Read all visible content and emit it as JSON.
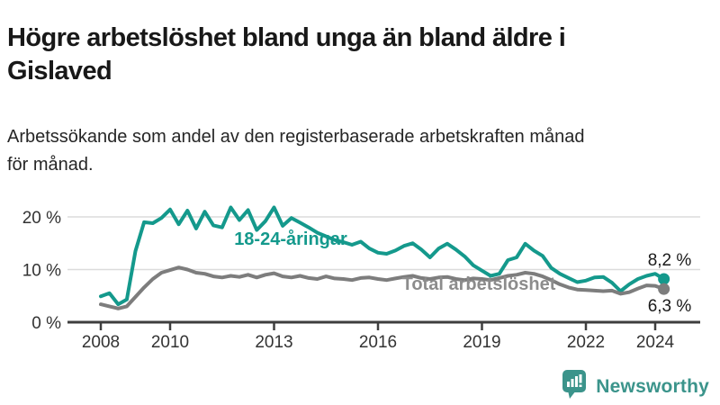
{
  "chart_data": {
    "type": "line",
    "title": "Högre arbetslöshet bland unga än bland äldre i Gislaved",
    "title_lines": [
      "Högre arbetslöshet bland unga än bland äldre i",
      "Gislaved"
    ],
    "subtitle": "Arbetssökande som andel av den registerbaserade arbetskraften månad för månad.",
    "subtitle_lines": [
      "Arbetssökande som andel av den registerbaserade arbetskraften månad",
      "för månad."
    ],
    "x_start": 2008,
    "x_step": 0.25,
    "x_ticks": [
      2008,
      2010,
      2013,
      2016,
      2019,
      2022,
      2024
    ],
    "y_ticks": [
      {
        "value": 0,
        "label": "0 %"
      },
      {
        "value": 10,
        "label": "10 %"
      },
      {
        "value": 20,
        "label": "20 %"
      }
    ],
    "ylim": [
      0,
      23
    ],
    "grid": "horizontal",
    "legend_position": "inline-annotations",
    "axis_color": "#3e3e3e",
    "grid_color": "#dcdcdc",
    "series": [
      {
        "name": "18-24-åringar",
        "color": "#14998c",
        "end_label": "8,2 %",
        "end_value": 8.2,
        "values": [
          4.9,
          5.5,
          3.4,
          4.3,
          13.5,
          19.0,
          18.8,
          19.8,
          21.4,
          18.6,
          21.2,
          17.8,
          21.0,
          18.4,
          18.0,
          21.8,
          19.4,
          21.3,
          17.5,
          19.2,
          21.8,
          18.3,
          19.8,
          18.9,
          18.0,
          17.0,
          16.3,
          15.6,
          15.2,
          14.7,
          15.3,
          14.0,
          13.2,
          13.0,
          13.6,
          14.5,
          15.0,
          13.8,
          12.3,
          14.0,
          14.9,
          13.8,
          12.5,
          10.8,
          9.8,
          8.8,
          9.2,
          11.8,
          12.3,
          14.9,
          13.6,
          12.6,
          10.3,
          9.2,
          8.4,
          7.6,
          7.9,
          8.5,
          8.6,
          7.5,
          5.9,
          7.2,
          8.2,
          8.8,
          9.2,
          8.2
        ]
      },
      {
        "name": "Total arbetslöshet",
        "color": "#7d7d7d",
        "label_color": "#8c8c8c",
        "end_label": "6,3 %",
        "end_value": 6.3,
        "values": [
          3.4,
          3.0,
          2.6,
          3.0,
          4.8,
          6.6,
          8.2,
          9.4,
          9.9,
          10.4,
          10.0,
          9.4,
          9.2,
          8.7,
          8.5,
          8.8,
          8.6,
          9.0,
          8.5,
          9.0,
          9.3,
          8.7,
          8.5,
          8.8,
          8.4,
          8.2,
          8.7,
          8.3,
          8.2,
          8.0,
          8.4,
          8.5,
          8.2,
          8.0,
          8.3,
          8.6,
          8.8,
          8.4,
          8.2,
          8.5,
          8.6,
          8.2,
          8.0,
          8.3,
          8.2,
          8.0,
          8.4,
          8.8,
          9.0,
          9.4,
          9.2,
          8.7,
          8.0,
          7.2,
          6.6,
          6.2,
          6.1,
          6.0,
          5.9,
          6.0,
          5.4,
          5.7,
          6.4,
          7.0,
          6.9,
          6.3
        ]
      }
    ]
  },
  "footer": {
    "brand": "Newsworthy",
    "brand_color": "#3b948b",
    "logo_icon": "bar-chart-speech-bubble-icon"
  }
}
